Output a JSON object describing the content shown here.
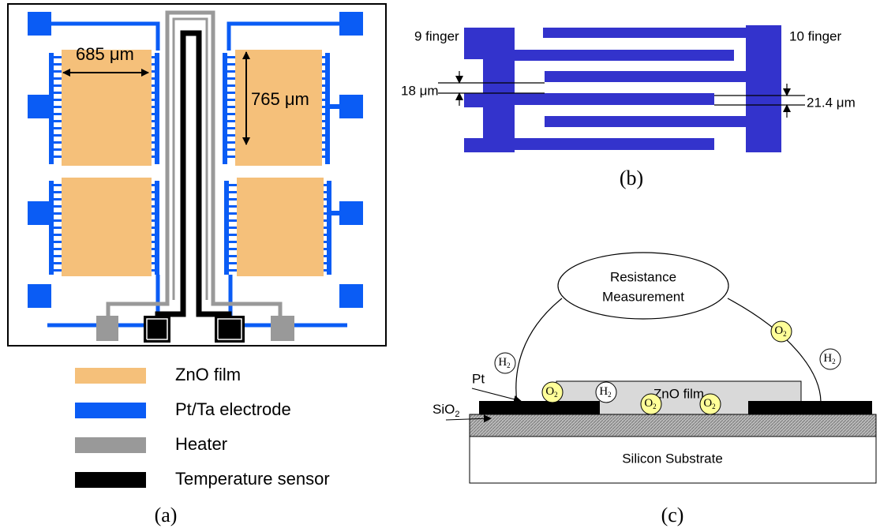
{
  "panel_a": {
    "dimensions": [
      "685 μm",
      "765 μm"
    ],
    "legend": [
      {
        "label": "ZnO film",
        "color": "#f5c07a"
      },
      {
        "label": "Pt/Ta electrode",
        "color": "#0a5cf5"
      },
      {
        "label": "Heater",
        "color": "#999999"
      },
      {
        "label": "Temperature sensor",
        "color": "#000000"
      }
    ],
    "caption": "(a)"
  },
  "panel_b": {
    "left_label": "9 finger",
    "right_label": "10 finger",
    "gap_left": "18 μm",
    "gap_right": "21.4 μm",
    "caption": "(b)"
  },
  "panel_c": {
    "measurement": [
      "Resistance",
      "Measurement"
    ],
    "molecules": [
      {
        "element": "H",
        "subscript": "2",
        "fill": "#ffffff"
      },
      {
        "element": "O",
        "subscript": "2",
        "fill": "#ffff99"
      },
      {
        "element": "H",
        "subscript": "2",
        "fill": "#ffffff"
      },
      {
        "element": "O",
        "subscript": "2",
        "fill": "#ffff99"
      },
      {
        "element": "O",
        "subscript": "2",
        "fill": "#ffff99"
      },
      {
        "element": "O",
        "subscript": "2",
        "fill": "#ffff99"
      },
      {
        "element": "H",
        "subscript": "2",
        "fill": "#ffffff"
      }
    ],
    "pt_label": "Pt",
    "sio2_label": {
      "element": "SiO",
      "subscript": "2"
    },
    "zno_label": "ZnO film",
    "substrate_label": "Silicon Substrate",
    "caption": "(c)"
  }
}
